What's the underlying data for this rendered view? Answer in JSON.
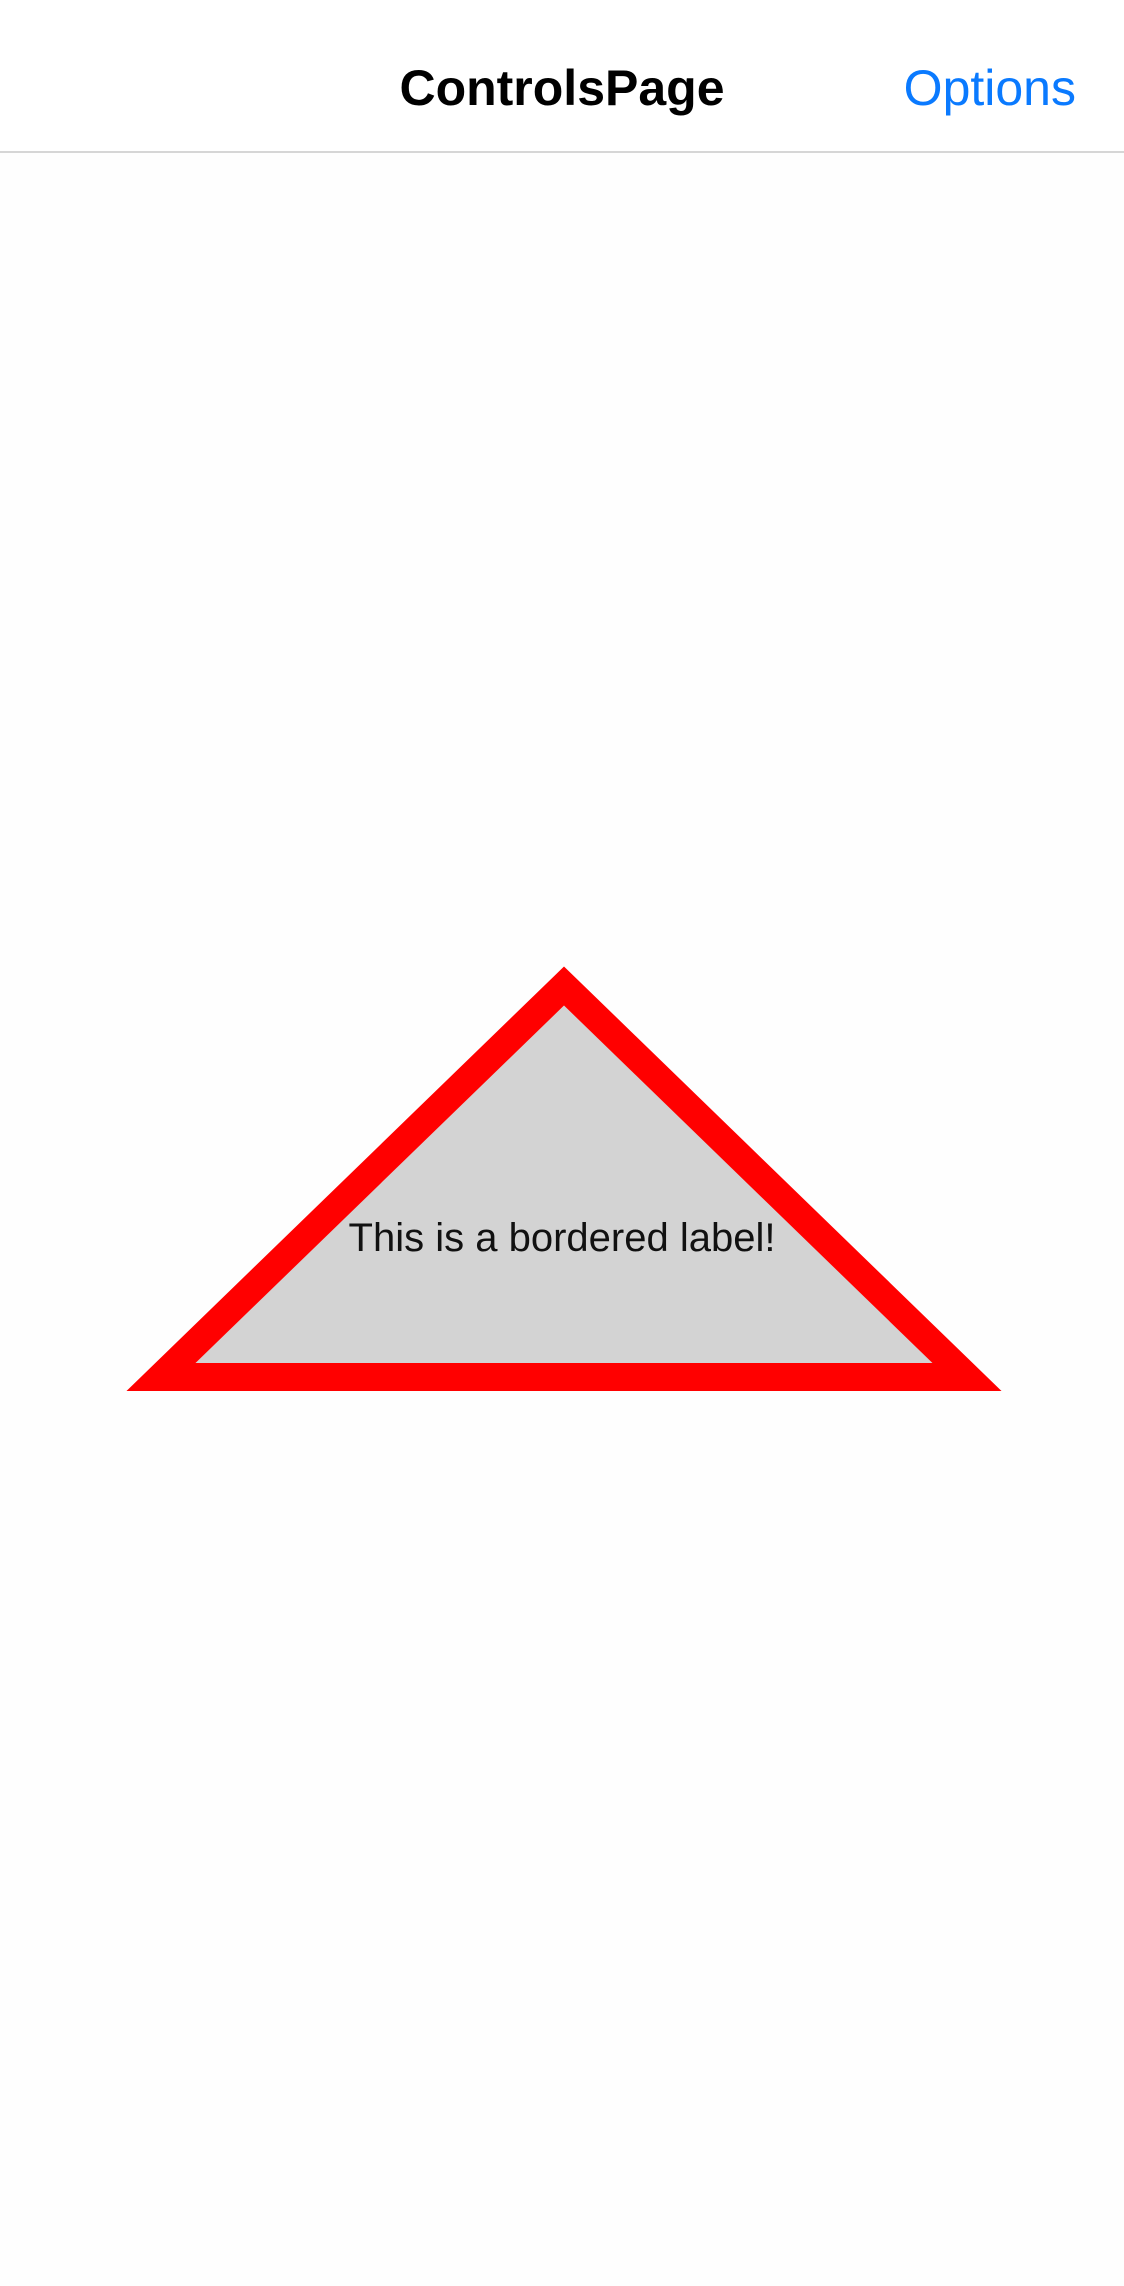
{
  "nav_bar": {
    "title": "ControlsPage",
    "action_label": "Options",
    "action_color": "#0a7aff"
  },
  "bordered_label": {
    "text": "This is a bordered label!",
    "shape": "triangle",
    "fill_color": "#d3d3d3",
    "border_color": "#ff0000"
  }
}
